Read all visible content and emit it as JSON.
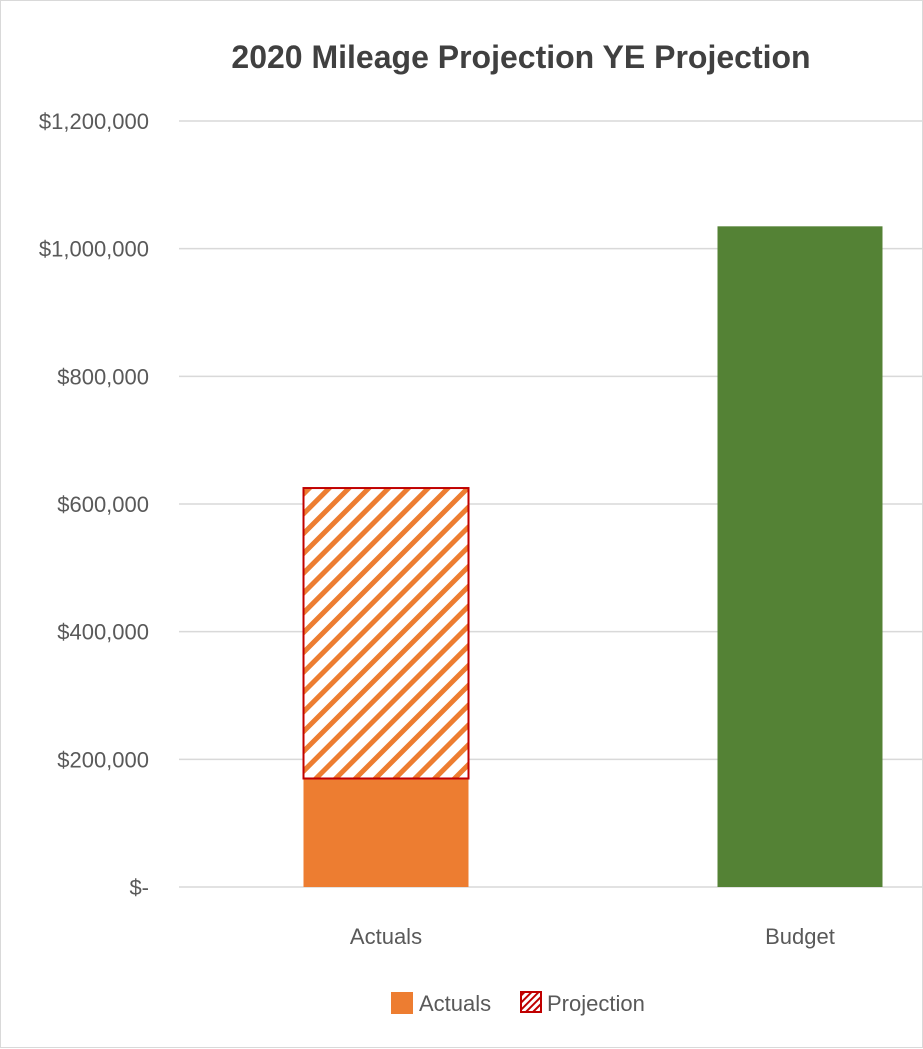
{
  "chart_data": {
    "type": "bar",
    "stacked": true,
    "title": "2020 Mileage Projection YE Projection",
    "xlabel": "",
    "ylabel": "",
    "ylim": [
      0,
      1200000
    ],
    "y_ticks": [
      0,
      200000,
      400000,
      600000,
      800000,
      1000000,
      1200000
    ],
    "y_tick_labels": [
      "$-",
      "$200,000",
      "$400,000",
      "$600,000",
      "$800,000",
      "$1,000,000",
      "$1,200,000"
    ],
    "categories": [
      "Actuals",
      "Budget"
    ],
    "series": [
      {
        "name": "Actuals",
        "values": [
          170000,
          0
        ],
        "color": "#ed7d31"
      },
      {
        "name": "Projection",
        "values": [
          455000,
          0
        ],
        "color": "#c00000",
        "pattern": "diagonal-hatch"
      },
      {
        "name": "",
        "values": [
          0,
          1035000
        ],
        "color": "#548235"
      }
    ],
    "grid": true,
    "legend": "bottom",
    "legend_entries": [
      "Actuals",
      "Projection"
    ]
  }
}
